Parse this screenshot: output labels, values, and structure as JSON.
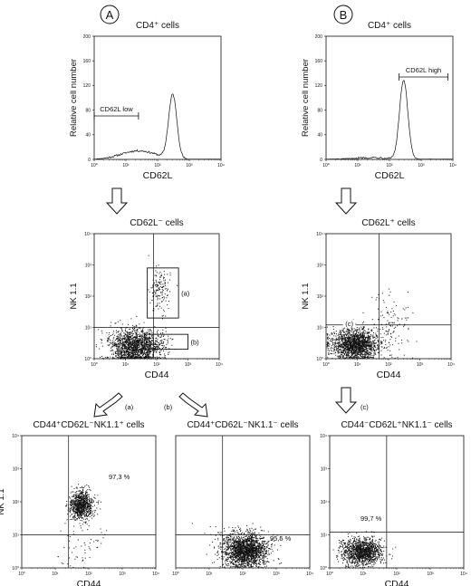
{
  "panel_letters": [
    "A",
    "B"
  ],
  "arrow_labels": [
    "(a)",
    "(b)",
    "(c)"
  ],
  "chart_data": [
    {
      "id": "hist_a",
      "type": "histogram",
      "title": "CD4⁺ cells",
      "xlabel": "CD62L",
      "ylabel": "Relative cell number",
      "xscale": "log",
      "xlim": [
        1,
        10000
      ],
      "ylim": [
        0,
        200
      ],
      "x_ticks": [
        "10⁰",
        "10¹",
        "10²",
        "10³",
        "10⁴"
      ],
      "y_ticks": [
        "0",
        "40",
        "80",
        "120",
        "160",
        "200"
      ],
      "gate_label": "CD62L low",
      "gate_range": [
        1,
        25
      ],
      "peak": {
        "x": 300,
        "y": 104
      }
    },
    {
      "id": "hist_b",
      "type": "histogram",
      "title": "CD4⁺ cells",
      "xlabel": "CD62L",
      "ylabel": "Relative cell number",
      "xscale": "log",
      "xlim": [
        1,
        10000
      ],
      "ylim": [
        0,
        200
      ],
      "x_ticks": [
        "10⁰",
        "10¹",
        "10²",
        "10³",
        "10⁴"
      ],
      "y_ticks": [
        "0",
        "40",
        "80",
        "120",
        "160",
        "200"
      ],
      "gate_label": "CD62L high",
      "gate_range": [
        200,
        7000
      ],
      "peak": {
        "x": 280,
        "y": 128
      }
    },
    {
      "id": "dot_a",
      "type": "scatter",
      "title": "CD62L⁻ cells",
      "xlabel": "CD44",
      "ylabel": "NK 1.1",
      "xscale": "log",
      "yscale": "log",
      "xlim": [
        1,
        10000
      ],
      "ylim": [
        1,
        10000
      ],
      "x_ticks": [
        "10⁰",
        "10¹",
        "10²",
        "10³",
        "10⁴"
      ],
      "y_ticks": [
        "10⁰",
        "10¹",
        "10²",
        "10³",
        "10⁴"
      ],
      "quadrant_lines": {
        "x": 80,
        "y": 10
      },
      "gates": [
        {
          "label": "(a)",
          "x": [
            50,
            500
          ],
          "y": [
            20,
            800
          ]
        },
        {
          "label": "(b)",
          "x": [
            40,
            1000
          ],
          "y": [
            2,
            6
          ]
        }
      ],
      "clusters": [
        {
          "cx": 20,
          "cy": 2.5,
          "n": 1600,
          "sx": 0.42,
          "sy": 0.27
        },
        {
          "cx": 120,
          "cy": 150,
          "n": 150,
          "sx": 0.17,
          "sy": 0.35
        }
      ]
    },
    {
      "id": "dot_b",
      "type": "scatter",
      "title": "CD62L⁺ cells",
      "xlabel": "CD44",
      "ylabel": "NK 1.1",
      "xscale": "log",
      "yscale": "log",
      "xlim": [
        1,
        10000
      ],
      "ylim": [
        1,
        10000
      ],
      "x_ticks": [
        "10⁰",
        "10¹",
        "10²",
        "10³",
        "10⁴"
      ],
      "y_ticks": [
        "10⁰",
        "10¹",
        "10²",
        "10³",
        "10⁴"
      ],
      "quadrant_lines": {
        "x": 50,
        "y": 12
      },
      "gates": [
        {
          "label": "(c)",
          "x": [
            1,
            50
          ],
          "y": [
            1,
            12
          ],
          "no_box": true
        }
      ],
      "clusters": [
        {
          "cx": 8,
          "cy": 3,
          "n": 1700,
          "sx": 0.38,
          "sy": 0.24
        },
        {
          "cx": 120,
          "cy": 12,
          "n": 120,
          "sx": 0.3,
          "sy": 0.5
        }
      ]
    },
    {
      "id": "dot_c",
      "type": "scatter",
      "title": "CD44⁺CD62L⁻NK1.1⁺ cells",
      "xlabel": "CD44",
      "ylabel": "NK 1.1",
      "xscale": "log",
      "yscale": "log",
      "xlim": [
        1,
        10000
      ],
      "ylim": [
        1,
        10000
      ],
      "x_ticks": [
        "10⁰",
        "10¹",
        "10²",
        "10³",
        "10⁴"
      ],
      "y_ticks": [
        "10⁰",
        "10¹",
        "10²",
        "10³",
        "10⁴"
      ],
      "quadrant_lines": {
        "x": 25,
        "y": 10
      },
      "percent": "97,3 %",
      "clusters": [
        {
          "cx": 60,
          "cy": 80,
          "n": 900,
          "sx": 0.17,
          "sy": 0.22
        },
        {
          "cx": 60,
          "cy": 5,
          "n": 60,
          "sx": 0.35,
          "sy": 0.35
        }
      ]
    },
    {
      "id": "dot_d",
      "type": "scatter",
      "title": "CD44⁺CD62L⁻NK1.1⁻ cells",
      "xlabel": "",
      "ylabel": "",
      "xscale": "log",
      "yscale": "log",
      "xlim": [
        1,
        10000
      ],
      "ylim": [
        1,
        10000
      ],
      "x_ticks": [
        "10⁰",
        "10¹",
        "10²",
        "10³",
        "10⁴"
      ],
      "y_ticks": [],
      "quadrant_lines": {
        "x": 25,
        "y": 10
      },
      "percent": "95,5 %",
      "clusters": [
        {
          "cx": 120,
          "cy": 3.5,
          "n": 1900,
          "sx": 0.33,
          "sy": 0.24
        },
        {
          "cx": 25,
          "cy": 8,
          "n": 40,
          "sx": 0.3,
          "sy": 0.2
        }
      ]
    },
    {
      "id": "dot_e",
      "type": "scatter",
      "title": "CD44⁻CD62L⁺NK1.1⁻ cells",
      "xlabel": "CD44",
      "ylabel": "",
      "xscale": "log",
      "yscale": "log",
      "xlim": [
        1,
        10000
      ],
      "ylim": [
        1,
        10000
      ],
      "x_ticks": [
        "10⁰",
        "10¹",
        "10²",
        "10³",
        "10⁴"
      ],
      "y_ticks": [
        "10⁰",
        "10¹",
        "10²",
        "10³",
        "10⁴"
      ],
      "quadrant_lines": {
        "x": 50,
        "y": 12
      },
      "percent": "99,7 %",
      "clusters": [
        {
          "cx": 9,
          "cy": 3.2,
          "n": 1300,
          "sx": 0.3,
          "sy": 0.2
        }
      ]
    }
  ],
  "labels": {
    "letter_a": "A",
    "letter_b": "B",
    "arrow_a": "(a)",
    "arrow_b": "(b)",
    "arrow_c": "(c)"
  },
  "colors": {
    "ink": "#111111",
    "paper": "#ffffff"
  }
}
